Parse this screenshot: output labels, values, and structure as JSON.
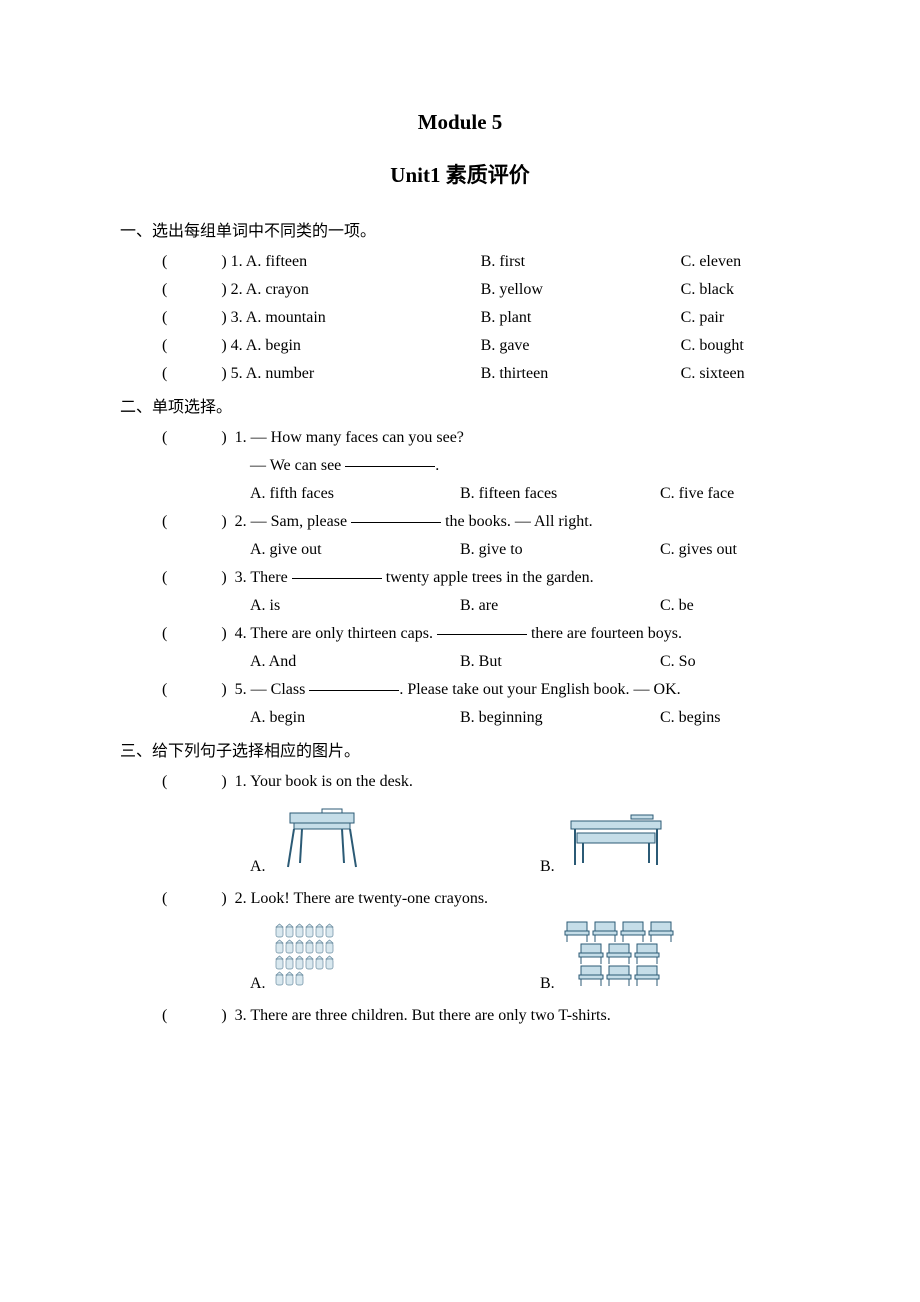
{
  "colors": {
    "background": "#ffffff",
    "text": "#000000",
    "desk_fill": "#c5dde8",
    "desk_stroke": "#2b5a75",
    "chair_fill": "#c5dde8",
    "chair_stroke": "#2b5a75",
    "crayon_fill": "#d9e8ef",
    "crayon_stroke": "#6a8ca0"
  },
  "typography": {
    "title_fontsize": 21,
    "body_fontsize": 16,
    "font_family": "Times New Roman / SimSun"
  },
  "titles": {
    "main": "Module 5",
    "sub": "Unit1 素质评价"
  },
  "section1": {
    "heading": "一、选出每组单词中不同类的一项。",
    "questions": [
      {
        "n": "1",
        "a": "A. fifteen",
        "b": "B. first",
        "c": "C. eleven"
      },
      {
        "n": "2",
        "a": "A. crayon",
        "b": "B. yellow",
        "c": "C. black"
      },
      {
        "n": "3",
        "a": "A. mountain",
        "b": "B. plant",
        "c": "C. pair"
      },
      {
        "n": "4",
        "a": "A. begin",
        "b": "B. gave",
        "c": "C. bought"
      },
      {
        "n": "5",
        "a": "A. number",
        "b": "B. thirteen",
        "c": "C. sixteen"
      }
    ]
  },
  "section2": {
    "heading": "二、单项选择。",
    "items": [
      {
        "n": "1",
        "prompt_prefix": "— How many faces can you see?",
        "response_prefix": "— We can see ",
        "response_suffix": ".",
        "a": "A. fifth faces",
        "b": "B. fifteen faces",
        "c": "C. five face"
      },
      {
        "n": "2",
        "prompt_prefix": "— Sam, please ",
        "prompt_suffix": " the books.   — All right.",
        "a": "A. give out",
        "b": "B. give to",
        "c": "C. gives out"
      },
      {
        "n": "3",
        "prompt_prefix": "There ",
        "prompt_suffix": " twenty apple trees in the garden.",
        "a": "A. is",
        "b": "B. are",
        "c": "C. be"
      },
      {
        "n": "4",
        "prompt_prefix": "There are only thirteen caps. ",
        "prompt_suffix": " there are fourteen boys.",
        "a": "A. And",
        "b": "B. But",
        "c": "C. So"
      },
      {
        "n": "5",
        "prompt_prefix": "— Class ",
        "prompt_suffix": ". Please take out your English book.   — OK.",
        "a": "A. begin",
        "b": "B. beginning",
        "c": "C. begins"
      }
    ]
  },
  "section3": {
    "heading": "三、给下列句子选择相应的图片。",
    "items": [
      {
        "n": "1",
        "text": "Your book is on the desk.",
        "a_label": "A.",
        "b_label": "B.",
        "imgA": "desk-with-book-on-top",
        "imgB": "desk-with-book-under"
      },
      {
        "n": "2",
        "text": "Look! There are twenty-one crayons.",
        "a_label": "A.",
        "b_label": "B.",
        "imgA": "twenty-one-crayons",
        "imgB": "ten-chairs"
      },
      {
        "n": "3",
        "text": "There are three children. But there are only two T-shirts."
      }
    ]
  },
  "paren": {
    "open": "(",
    "close": ")"
  }
}
